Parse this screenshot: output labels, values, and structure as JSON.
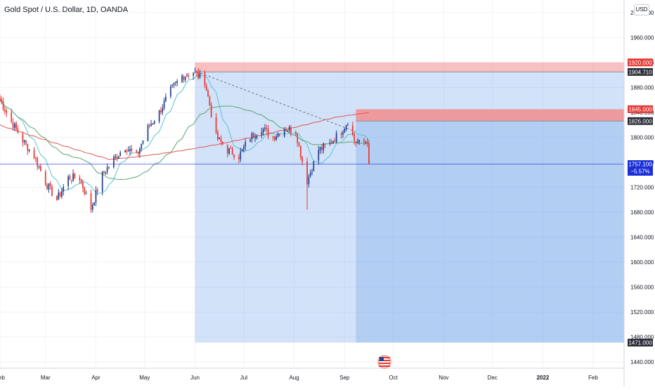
{
  "header": {
    "title": "Gold Spot / U.S. Dollar, 1D, OANDA",
    "currency": "USD"
  },
  "colors": {
    "up": "#26418f",
    "down": "#e53935",
    "sma_slow": "#e05555",
    "sma_mid": "#5da56f",
    "sma_fast": "#57c3d6",
    "stop": "#f28d8d",
    "target": "#6b9fe8",
    "last": "#1b2fd6"
  },
  "chart_data": {
    "type": "candlestick",
    "y_ticks": [
      "2000.000",
      "1960.000",
      "1920.000",
      "1880.000",
      "1840.000",
      "1800.000",
      "1760.000",
      "1720.000",
      "1680.000",
      "1640.000",
      "1600.000",
      "1560.000",
      "1520.000",
      "1480.000",
      "1440.000"
    ],
    "x_ticks": [
      "Feb",
      "Mar",
      "Apr",
      "May",
      "Jun",
      "Jul",
      "Aug",
      "Sep",
      "Oct",
      "Nov",
      "Dec",
      "2022",
      "Feb"
    ],
    "ylim": [
      1430,
      2020
    ],
    "xlim": [
      "2021-02-01",
      "2022-02-20"
    ],
    "price_tags": [
      {
        "name": "stop-1",
        "label": "1920.000",
        "value": 1920,
        "kind": "stop"
      },
      {
        "name": "entry-1",
        "label": "1904.710",
        "value": 1904.71,
        "kind": "entry"
      },
      {
        "name": "stop-2",
        "label": "1845.000",
        "value": 1845,
        "kind": "stop"
      },
      {
        "name": "entry-2",
        "label": "1826.000",
        "value": 1826,
        "kind": "entry"
      },
      {
        "name": "target",
        "label": "1471.000",
        "value": 1471,
        "kind": "entry"
      }
    ],
    "last_price": {
      "value": 1757.1,
      "label": "1757.100",
      "change": "−5.57%"
    },
    "positions": [
      {
        "name": "short-position-1",
        "start": "2021-06-01",
        "end": "2022-02-20",
        "entry": 1904.71,
        "stop": 1920,
        "target": 1471
      },
      {
        "name": "short-position-2",
        "start": "2021-09-08",
        "end": "2022-02-20",
        "entry": 1826,
        "stop": 1845,
        "target": 1471
      }
    ],
    "trend_line": {
      "start": [
        "2021-06-02",
        1905
      ],
      "end": [
        "2021-09-08",
        1809
      ]
    },
    "anchors": [
      [
        "2021-02-01",
        1860
      ],
      [
        "2021-02-08",
        1825
      ],
      [
        "2021-02-15",
        1795
      ],
      [
        "2021-02-22",
        1770
      ],
      [
        "2021-03-01",
        1728
      ],
      [
        "2021-03-08",
        1700
      ],
      [
        "2021-03-15",
        1735
      ],
      [
        "2021-03-22",
        1735
      ],
      [
        "2021-03-29",
        1686
      ],
      [
        "2021-04-05",
        1740
      ],
      [
        "2021-04-12",
        1765
      ],
      [
        "2021-04-19",
        1785
      ],
      [
        "2021-04-26",
        1770
      ],
      [
        "2021-05-03",
        1815
      ],
      [
        "2021-05-10",
        1840
      ],
      [
        "2021-05-17",
        1875
      ],
      [
        "2021-05-24",
        1898
      ],
      [
        "2021-05-31",
        1905
      ],
      [
        "2021-06-07",
        1890
      ],
      [
        "2021-06-14",
        1800
      ],
      [
        "2021-06-21",
        1780
      ],
      [
        "2021-06-28",
        1770
      ],
      [
        "2021-07-05",
        1800
      ],
      [
        "2021-07-12",
        1815
      ],
      [
        "2021-07-19",
        1800
      ],
      [
        "2021-07-26",
        1815
      ],
      [
        "2021-08-02",
        1810
      ],
      [
        "2021-08-06",
        1762
      ],
      [
        "2021-08-09",
        1730
      ],
      [
        "2021-08-16",
        1780
      ],
      [
        "2021-08-23",
        1790
      ],
      [
        "2021-08-30",
        1810
      ],
      [
        "2021-09-03",
        1826
      ],
      [
        "2021-09-07",
        1795
      ],
      [
        "2021-09-10",
        1790
      ],
      [
        "2021-09-15",
        1795
      ],
      [
        "2021-09-16",
        1757
      ]
    ]
  },
  "watermark": {
    "icon": "us-flag-icon"
  }
}
